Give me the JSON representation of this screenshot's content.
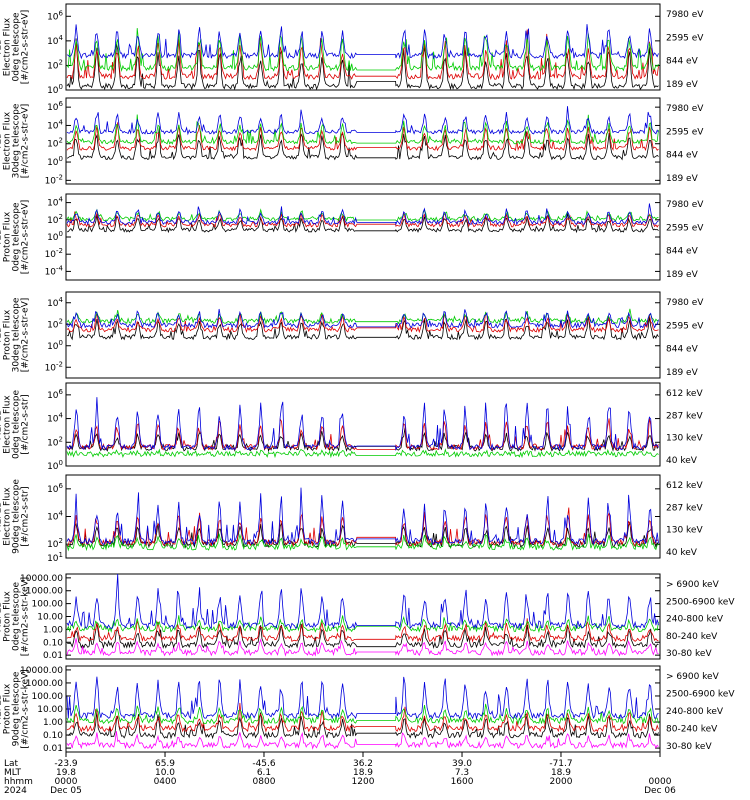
{
  "chart_data": [
    {
      "type": "line",
      "ylabel": [
        "TED",
        "Electron Flux",
        "0deg telescope",
        "[#/cm2-s-str-eV]"
      ],
      "yscale": "log",
      "ytick_labels": [
        "10^6",
        "10^4",
        "10^2",
        "10^0"
      ],
      "ytick_exps": [
        6,
        4,
        2,
        0
      ],
      "ylim_exp": [
        0,
        7
      ],
      "legend_placement": "right",
      "data_gap_x": [
        0.4905,
        0.5548
      ],
      "series": [
        {
          "name": "7980 eV",
          "color": "#000000",
          "base_exp": 0.3,
          "spike_exp": 3.6
        },
        {
          "name": "2595 eV",
          "color": "#dd0000",
          "base_exp": 1.1,
          "spike_exp": 4.2
        },
        {
          "name": "844 eV",
          "color": "#00cc00",
          "base_exp": 1.8,
          "spike_exp": 4.8
        },
        {
          "name": "189 eV",
          "color": "#0000dd",
          "base_exp": 2.8,
          "spike_exp": 5.3
        }
      ]
    },
    {
      "type": "line",
      "ylabel": [
        "TED",
        "Electron Flux",
        "30deg telescope",
        "[#/cm2-s-str-eV]"
      ],
      "yscale": "log",
      "ytick_labels": [
        "10^6",
        "10^4",
        "10^2",
        "10^0",
        "10^-2"
      ],
      "ytick_exps": [
        6,
        4,
        2,
        0,
        -2
      ],
      "ylim_exp": [
        -2.4,
        7
      ],
      "legend_placement": "right",
      "data_gap_x": [
        0.4905,
        0.5548
      ],
      "series": [
        {
          "name": "7980 eV",
          "color": "#000000",
          "base_exp": 0.5,
          "spike_exp": 3.4
        },
        {
          "name": "2595 eV",
          "color": "#dd0000",
          "base_exp": 1.5,
          "spike_exp": 4.0
        },
        {
          "name": "844 eV",
          "color": "#00cc00",
          "base_exp": 2.2,
          "spike_exp": 4.8
        },
        {
          "name": "189 eV",
          "color": "#0000dd",
          "base_exp": 3.3,
          "spike_exp": 5.4
        }
      ]
    },
    {
      "type": "line",
      "ylabel": [
        "TED",
        "Proton Flux",
        "0deg telescope",
        "[#/cm2-s-str-eV]"
      ],
      "yscale": "log",
      "ytick_labels": [
        "10^4",
        "10^2",
        "10^0",
        "10^-2",
        "10^-4"
      ],
      "ytick_exps": [
        4,
        2,
        0,
        -2,
        -4
      ],
      "ylim_exp": [
        -5,
        5
      ],
      "legend_placement": "right",
      "data_gap_x": [
        0.4905,
        0.5548
      ],
      "series": [
        {
          "name": "7980 eV",
          "color": "#000000",
          "base_exp": 0.8,
          "spike_exp": 2.6
        },
        {
          "name": "2595 eV",
          "color": "#dd0000",
          "base_exp": 1.4,
          "spike_exp": 2.8
        },
        {
          "name": "844 eV",
          "color": "#00cc00",
          "base_exp": 2.1,
          "spike_exp": 3.0
        },
        {
          "name": "189 eV",
          "color": "#0000dd",
          "base_exp": 1.7,
          "spike_exp": 3.3
        }
      ]
    },
    {
      "type": "line",
      "ylabel": [
        "TED",
        "Proton Flux",
        "30deg telescope",
        "[#/cm2-s-str-eV]"
      ],
      "yscale": "log",
      "ytick_labels": [
        "10^4",
        "10^2",
        "10^0",
        "10^-2"
      ],
      "ytick_exps": [
        4,
        2,
        0,
        -2
      ],
      "ylim_exp": [
        -3,
        5
      ],
      "legend_placement": "right",
      "data_gap_x": [
        0.4905,
        0.5548
      ],
      "series": [
        {
          "name": "7980 eV",
          "color": "#000000",
          "base_exp": 0.8,
          "spike_exp": 2.6
        },
        {
          "name": "2595 eV",
          "color": "#dd0000",
          "base_exp": 1.5,
          "spike_exp": 2.9
        },
        {
          "name": "844 eV",
          "color": "#00cc00",
          "base_exp": 2.3,
          "spike_exp": 3.1
        },
        {
          "name": "189 eV",
          "color": "#0000dd",
          "base_exp": 1.9,
          "spike_exp": 3.4
        }
      ]
    },
    {
      "type": "line",
      "ylabel": [
        "MEPED",
        "Electron Flux",
        "0deg telescope",
        "[#/cm2-s-str]"
      ],
      "yscale": "log",
      "ytick_labels": [
        "10^6",
        "10^4",
        "10^2",
        "10^0"
      ],
      "ytick_exps": [
        6,
        4,
        2,
        0
      ],
      "ylim_exp": [
        0,
        7
      ],
      "legend_placement": "right",
      "data_gap_x": [
        0.4905,
        0.5548
      ],
      "series": [
        {
          "name": "612 keV",
          "color": "#000000",
          "base_exp": 1.5,
          "spike_exp": 3.0
        },
        {
          "name": "287 keV",
          "color": "#dd0000",
          "base_exp": 1.6,
          "spike_exp": 4.0
        },
        {
          "name": "130 keV",
          "color": "#00cc00",
          "base_exp": 1.0,
          "spike_exp": 1.2
        },
        {
          "name": "40 keV",
          "color": "#0000dd",
          "base_exp": 1.6,
          "spike_exp": 5.5
        }
      ]
    },
    {
      "type": "line",
      "ylabel": [
        "MEPED",
        "Electron Flux",
        "90deg telescope",
        "[#/cm2-s-str]"
      ],
      "yscale": "log",
      "ytick_labels": [
        "10^6",
        "10^4",
        "10^2",
        "10^1"
      ],
      "ytick_exps": [
        6,
        4,
        2,
        1
      ],
      "ylim_exp": [
        1,
        7
      ],
      "legend_placement": "right",
      "data_gap_x": [
        0.4905,
        0.5548
      ],
      "series": [
        {
          "name": "612 keV",
          "color": "#000000",
          "base_exp": 2.0,
          "spike_exp": 3.6
        },
        {
          "name": "287 keV",
          "color": "#dd0000",
          "base_exp": 2.1,
          "spike_exp": 4.4
        },
        {
          "name": "130 keV",
          "color": "#00cc00",
          "base_exp": 1.8,
          "spike_exp": 2.6
        },
        {
          "name": "40 keV",
          "color": "#0000dd",
          "base_exp": 2.2,
          "spike_exp": 5.2
        }
      ]
    },
    {
      "type": "line",
      "ylabel": [
        "MEPED",
        "Proton Flux",
        "0deg telescope",
        "[#/cm2-s-str-keV]"
      ],
      "yscale": "log",
      "ytick_labels": [
        "10000.00",
        "1000.00",
        "100.00",
        "10.00",
        "1.00",
        "0.10",
        "0.01"
      ],
      "ytick_exps": [
        4,
        3,
        2,
        1,
        0,
        -1,
        -2
      ],
      "ylim_exp": [
        -2.3,
        4.3
      ],
      "legend_placement": "right",
      "data_gap_x": [
        0.4905,
        0.5548
      ],
      "series": [
        {
          "name": "> 6900 keV",
          "color": "#ff00ff",
          "base_exp": -1.8,
          "spike_exp": -0.9
        },
        {
          "name": "2500-6900 keV",
          "color": "#000000",
          "base_exp": -1.2,
          "spike_exp": 0.3
        },
        {
          "name": "240-800 keV",
          "color": "#dd0000",
          "base_exp": -0.7,
          "spike_exp": 0.6
        },
        {
          "name": "80-240 keV",
          "color": "#00cc00",
          "base_exp": 0.05,
          "spike_exp": 0.9
        },
        {
          "name": "30-80 keV",
          "color": "#0000dd",
          "base_exp": 0.3,
          "spike_exp": 3.4
        }
      ]
    },
    {
      "type": "line",
      "ylabel": [
        "MEPED",
        "Proton Flux",
        "90deg telescope",
        "[#/cm2-s-str-keV]"
      ],
      "yscale": "log",
      "ytick_labels": [
        "10000.00",
        "1000.00",
        "100.00",
        "10.00",
        "1.00",
        "0.10",
        "0.01"
      ],
      "ytick_exps": [
        4,
        3,
        2,
        1,
        0,
        -1,
        -2
      ],
      "ylim_exp": [
        -2.3,
        4.3
      ],
      "legend_placement": "right",
      "data_gap_x": [
        0.4905,
        0.5548
      ],
      "series": [
        {
          "name": "> 6900 keV",
          "color": "#ff00ff",
          "base_exp": -1.8,
          "spike_exp": -0.9
        },
        {
          "name": "2500-6900 keV",
          "color": "#000000",
          "base_exp": -1.0,
          "spike_exp": 0.5
        },
        {
          "name": "240-800 keV",
          "color": "#dd0000",
          "base_exp": -0.5,
          "spike_exp": 0.8
        },
        {
          "name": "80-240 keV",
          "color": "#00cc00",
          "base_exp": 0.1,
          "spike_exp": 1.2
        },
        {
          "name": "30-80 keV",
          "color": "#0000dd",
          "base_exp": 0.5,
          "spike_exp": 3.5
        }
      ]
    }
  ],
  "x_axis": {
    "row_labels": [
      "Lat",
      "MLT",
      "hhmm",
      "2024"
    ],
    "ticks": [
      {
        "frac": 0.0,
        "values": [
          "-23.9",
          "19.8",
          "0000",
          "Dec 05"
        ]
      },
      {
        "frac": 0.1667,
        "values": [
          "65.9",
          "10.0",
          "0400",
          ""
        ]
      },
      {
        "frac": 0.3333,
        "values": [
          "-45.6",
          "6.1",
          "0800",
          ""
        ]
      },
      {
        "frac": 0.5,
        "values": [
          "36.2",
          "18.9",
          "1200",
          ""
        ]
      },
      {
        "frac": 0.6667,
        "values": [
          "39.0",
          "7.3",
          "1600",
          ""
        ]
      },
      {
        "frac": 0.8333,
        "values": [
          "-71.7",
          "18.9",
          "2000",
          ""
        ]
      },
      {
        "frac": 1.0,
        "values": [
          "",
          "",
          "0000",
          "Dec 06"
        ]
      }
    ]
  }
}
